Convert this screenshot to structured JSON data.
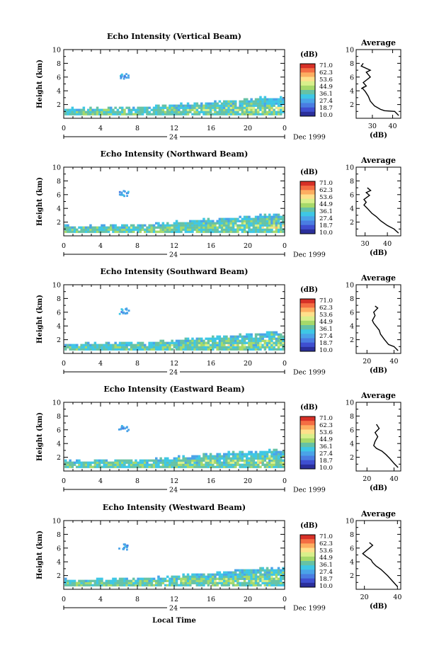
{
  "colorbar": {
    "unit": "(dB)",
    "ticks": [
      "71.0",
      "62.3",
      "53.6",
      "44.9",
      "36.1",
      "27.4",
      "18.7",
      "10.0"
    ],
    "colors": [
      "#d73027",
      "#f46d43",
      "#fdae61",
      "#fee08b",
      "#d9ef8b",
      "#a6d96a",
      "#66c2a5",
      "#3ec7e5",
      "#4aa3e8",
      "#4a7de2",
      "#3f4fd0",
      "#2b2f9b"
    ]
  },
  "shared": {
    "ylabel": "Height (km)",
    "time_ticks": [
      "0",
      "4",
      "8",
      "12",
      "16",
      "20",
      "0"
    ],
    "day_label": "24",
    "date_label": "Dec 1999",
    "xlabel": "Local Time",
    "avg_title": "Average",
    "avg_xlabel": "(dB)"
  },
  "chart_data": [
    {
      "type": "heatmap",
      "title": "Echo Intensity (Vertical Beam)",
      "ylabel": "Height (km)",
      "ylim": [
        0,
        10
      ],
      "xlim": [
        0,
        24
      ],
      "avg_ticks": [
        "30",
        "40"
      ],
      "avg_xlim": [
        22,
        44
      ],
      "avg_profile": [
        [
          43,
          0.4
        ],
        [
          41,
          1.0
        ],
        [
          36,
          1.1
        ],
        [
          34,
          1.3
        ],
        [
          31,
          1.8
        ],
        [
          29,
          2.5
        ],
        [
          28,
          3.2
        ],
        [
          26.5,
          3.9
        ],
        [
          25,
          4.4
        ],
        [
          26,
          4.6
        ],
        [
          24.5,
          4.3
        ],
        [
          27,
          4.7
        ],
        [
          25.5,
          5.2
        ],
        [
          29,
          6.0
        ],
        [
          27,
          6.7
        ],
        [
          29,
          7.0
        ],
        [
          24.5,
          7.6
        ],
        [
          25.5,
          8.0
        ]
      ]
    },
    {
      "type": "heatmap",
      "title": "Echo Intensity (Northward Beam)",
      "ylabel": "Height (km)",
      "ylim": [
        0,
        10
      ],
      "xlim": [
        0,
        24
      ],
      "avg_ticks": [
        "30",
        "40"
      ],
      "avg_xlim": [
        26,
        46
      ],
      "avg_profile": [
        [
          45,
          0.4
        ],
        [
          43,
          1.0
        ],
        [
          40,
          1.5
        ],
        [
          37,
          2.2
        ],
        [
          35,
          2.8
        ],
        [
          33,
          3.3
        ],
        [
          31,
          4.0
        ],
        [
          29.5,
          4.5
        ],
        [
          30.5,
          4.9
        ],
        [
          29.5,
          5.3
        ],
        [
          32,
          5.9
        ],
        [
          30.5,
          6.3
        ],
        [
          32.5,
          6.6
        ],
        [
          31,
          7.0
        ]
      ]
    },
    {
      "type": "heatmap",
      "title": "Echo Intensity (Southward Beam)",
      "ylabel": "Height (km)",
      "ylim": [
        0,
        10
      ],
      "xlim": [
        0,
        24
      ],
      "avg_ticks": [
        "20",
        "40"
      ],
      "avg_xlim": [
        12,
        45
      ],
      "avg_profile": [
        [
          43,
          0.4
        ],
        [
          40,
          1.0
        ],
        [
          36,
          1.3
        ],
        [
          33,
          2.0
        ],
        [
          30,
          2.8
        ],
        [
          29,
          3.4
        ],
        [
          27,
          3.9
        ],
        [
          25,
          4.4
        ],
        [
          24,
          4.8
        ],
        [
          26,
          5.5
        ],
        [
          25,
          6.0
        ],
        [
          28,
          6.6
        ],
        [
          26,
          6.9
        ]
      ]
    },
    {
      "type": "heatmap",
      "title": "Echo Intensity (Eastward Beam)",
      "ylabel": "Height (km)",
      "ylim": [
        0,
        10
      ],
      "xlim": [
        0,
        24
      ],
      "avg_ticks": [
        "20",
        "40"
      ],
      "avg_xlim": [
        12,
        45
      ],
      "avg_profile": [
        [
          43,
          0.5
        ],
        [
          40,
          1.1
        ],
        [
          37,
          1.8
        ],
        [
          34,
          2.4
        ],
        [
          31,
          2.9
        ],
        [
          27,
          3.3
        ],
        [
          25,
          3.7
        ],
        [
          26,
          4.3
        ],
        [
          28,
          5.0
        ],
        [
          26,
          5.6
        ],
        [
          29,
          6.2
        ],
        [
          27,
          6.8
        ]
      ]
    },
    {
      "type": "heatmap",
      "title": "Echo Intensity (Westward Beam)",
      "ylabel": "Height (km)",
      "ylim": [
        0,
        10
      ],
      "xlim": [
        0,
        24
      ],
      "avg_ticks": [
        "20",
        "40"
      ],
      "avg_xlim": [
        15,
        42
      ],
      "avg_profile": [
        [
          40,
          0.4
        ],
        [
          37,
          1.2
        ],
        [
          34,
          2.0
        ],
        [
          30,
          2.9
        ],
        [
          27,
          3.4
        ],
        [
          25,
          3.9
        ],
        [
          24,
          4.3
        ],
        [
          21,
          4.8
        ],
        [
          19,
          5.2
        ],
        [
          21,
          5.6
        ],
        [
          23,
          6.0
        ],
        [
          25,
          6.4
        ],
        [
          23,
          6.8
        ]
      ]
    }
  ]
}
